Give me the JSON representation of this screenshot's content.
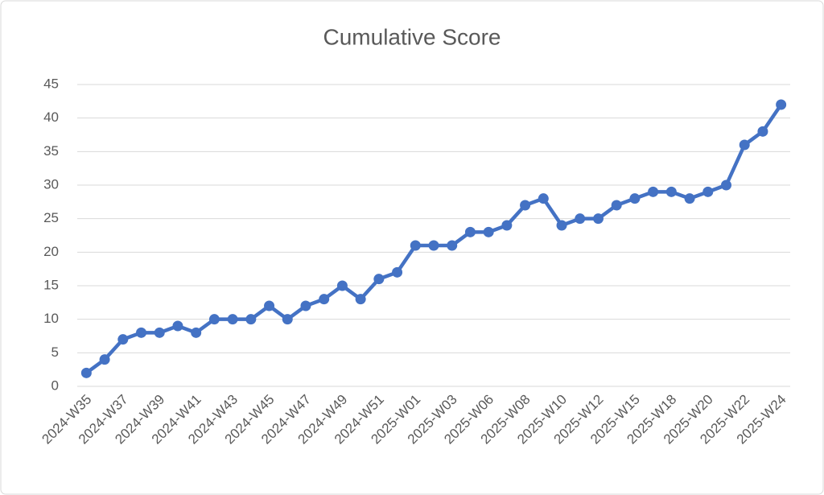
{
  "chart_data": {
    "type": "line",
    "title": "Cumulative Score",
    "categories": [
      "2024-W35",
      null,
      "2024-W37",
      null,
      "2024-W39",
      null,
      "2024-W41",
      null,
      "2024-W43",
      null,
      "2024-W45",
      null,
      "2024-W47",
      null,
      "2024-W49",
      null,
      "2024-W51",
      null,
      "2025-W01",
      null,
      "2025-W03",
      null,
      "2025-W06",
      null,
      "2025-W08",
      null,
      "2025-W10",
      null,
      "2025-W12",
      null,
      "2025-W15",
      null,
      "2025-W18",
      null,
      "2025-W20",
      null,
      "2025-W22",
      null,
      "2025-W24"
    ],
    "series": [
      {
        "color": "#4472c4",
        "values": [
          2,
          4,
          7,
          8,
          8,
          9,
          8,
          10,
          10,
          10,
          12,
          10,
          12,
          13,
          15,
          13,
          16,
          17,
          21,
          21,
          21,
          23,
          23,
          24,
          27,
          28,
          24,
          25,
          25,
          27,
          28,
          29,
          29,
          28,
          29,
          30,
          36,
          38,
          42
        ]
      }
    ],
    "ylim": [
      0,
      45
    ],
    "yticks": [
      0,
      5,
      10,
      15,
      20,
      25,
      30,
      35,
      40,
      45
    ],
    "grid": true
  }
}
